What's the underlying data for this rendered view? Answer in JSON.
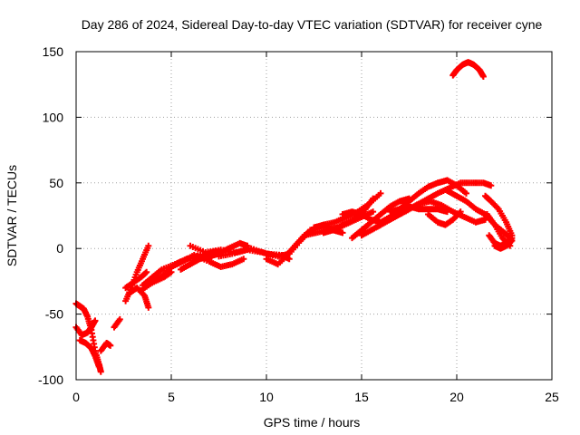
{
  "chart_data": {
    "type": "scatter",
    "title": "Day 286 of 2024, Sidereal Day-to-day VTEC variation (SDTVAR) for receiver cyne",
    "xlabel": "GPS time / hours",
    "ylabel": "SDTVAR / TECUs",
    "xlim": [
      0,
      25
    ],
    "ylim": [
      -100,
      150
    ],
    "xticks": [
      0,
      5,
      10,
      15,
      20,
      25
    ],
    "yticks": [
      -100,
      -50,
      0,
      50,
      100,
      150
    ],
    "xtick_labels": [
      "0",
      "5",
      "10",
      "15",
      "20",
      "25"
    ],
    "ytick_labels": [
      "-100",
      "-50",
      "0",
      "50",
      "100",
      "150"
    ],
    "grid": true,
    "marker": "+",
    "color": "#ff0000",
    "series": [
      {
        "name": "track-1",
        "x": [
          0.0,
          0.2,
          0.4,
          0.6,
          0.8,
          1.0,
          1.2,
          1.3
        ],
        "y": [
          -42,
          -44,
          -46,
          -52,
          -62,
          -78,
          -88,
          -94
        ]
      },
      {
        "name": "track-2",
        "x": [
          0.0,
          0.3,
          0.6,
          0.8,
          1.0
        ],
        "y": [
          -60,
          -66,
          -64,
          -60,
          -55
        ]
      },
      {
        "name": "track-3",
        "x": [
          0.2,
          0.5,
          0.8,
          1.0,
          1.2
        ],
        "y": [
          -70,
          -72,
          -76,
          -82,
          -90
        ]
      },
      {
        "name": "track-4",
        "x": [
          1.3,
          1.6,
          1.8
        ],
        "y": [
          -78,
          -72,
          -74
        ]
      },
      {
        "name": "track-5",
        "x": [
          2.0,
          2.3
        ],
        "y": [
          -60,
          -54
        ]
      },
      {
        "name": "track-6",
        "x": [
          2.6,
          2.9,
          3.2,
          3.5,
          3.8
        ],
        "y": [
          -40,
          -30,
          -18,
          -8,
          2
        ]
      },
      {
        "name": "track-7",
        "x": [
          2.6,
          3.0,
          3.4,
          3.7
        ],
        "y": [
          -30,
          -26,
          -22,
          -18
        ]
      },
      {
        "name": "track-8",
        "x": [
          2.8,
          3.2,
          3.6,
          3.8
        ],
        "y": [
          -34,
          -30,
          -36,
          -45
        ]
      },
      {
        "name": "track-9",
        "x": [
          3.4,
          4.0,
          4.6,
          5.0
        ],
        "y": [
          -32,
          -26,
          -22,
          -18
        ]
      },
      {
        "name": "track-10",
        "x": [
          3.5,
          4.0,
          4.5,
          5.2,
          6.0,
          6.8,
          7.5
        ],
        "y": [
          -28,
          -22,
          -16,
          -12,
          -7,
          -4,
          -2
        ]
      },
      {
        "name": "track-11",
        "x": [
          4.0,
          4.6,
          5.2,
          5.8,
          6.4,
          7.0
        ],
        "y": [
          -26,
          -20,
          -12,
          -8,
          -6,
          -8
        ]
      },
      {
        "name": "track-12",
        "x": [
          5.0,
          5.6,
          6.2,
          7.0,
          7.6,
          8.2,
          8.8
        ],
        "y": [
          -14,
          -10,
          -5,
          -10,
          -14,
          -12,
          -8
        ]
      },
      {
        "name": "track-13",
        "x": [
          5.5,
          6.0,
          6.5,
          7.0,
          7.5,
          8.0,
          8.6,
          9.0
        ],
        "y": [
          -16,
          -12,
          -8,
          -6,
          -4,
          0,
          4,
          2
        ]
      },
      {
        "name": "track-14",
        "x": [
          6.0,
          6.8,
          7.6,
          8.4,
          9.2,
          10.0,
          10.8,
          11.2
        ],
        "y": [
          2,
          -3,
          -1,
          -3,
          0,
          -4,
          -5,
          -8
        ]
      },
      {
        "name": "track-15",
        "x": [
          7.5,
          8.2,
          9.0,
          9.8,
          10.6,
          11.2
        ],
        "y": [
          -6,
          -4,
          -1,
          -3,
          -6,
          -4
        ]
      },
      {
        "name": "track-16",
        "x": [
          10.0,
          10.6,
          11.2,
          11.8,
          12.3
        ],
        "y": [
          -8,
          -12,
          -4,
          6,
          14
        ]
      },
      {
        "name": "track-17",
        "x": [
          11.0,
          11.5,
          12.0,
          12.5,
          13.0,
          13.5,
          14.0
        ],
        "y": [
          -6,
          2,
          10,
          15,
          18,
          14,
          12
        ]
      },
      {
        "name": "track-18",
        "x": [
          11.5,
          12.0,
          12.6,
          13.2,
          13.8,
          14.4,
          15.0,
          15.6
        ],
        "y": [
          2,
          10,
          12,
          14,
          16,
          20,
          24,
          28
        ]
      },
      {
        "name": "track-19",
        "x": [
          12.5,
          13.0,
          13.6,
          14.2,
          14.8,
          15.4,
          16.0
        ],
        "y": [
          16,
          18,
          20,
          24,
          28,
          34,
          42
        ]
      },
      {
        "name": "track-20",
        "x": [
          13.0,
          13.5,
          14.0,
          14.6,
          15.2,
          15.6
        ],
        "y": [
          12,
          14,
          18,
          22,
          30,
          38
        ]
      },
      {
        "name": "track-21",
        "x": [
          14.0,
          14.5,
          15.0,
          15.5,
          16.0,
          16.5,
          17.0
        ],
        "y": [
          26,
          28,
          26,
          22,
          20,
          24,
          26
        ]
      },
      {
        "name": "track-22",
        "x": [
          14.5,
          15.0,
          15.5,
          16.0,
          16.5,
          17.0,
          17.5
        ],
        "y": [
          8,
          14,
          20,
          26,
          32,
          36,
          38
        ]
      },
      {
        "name": "track-23",
        "x": [
          15.0,
          15.5,
          16.0,
          16.5,
          17.0,
          17.5,
          18.0,
          18.6,
          19.2,
          19.8,
          20.4,
          21.0,
          21.5
        ],
        "y": [
          10,
          14,
          18,
          22,
          26,
          30,
          34,
          36,
          33,
          28,
          24,
          20,
          22
        ]
      },
      {
        "name": "track-24",
        "x": [
          15.5,
          16.0,
          16.5,
          17.0,
          17.5,
          18.0,
          18.5,
          19.0,
          19.5,
          20.0,
          20.5
        ],
        "y": [
          14,
          18,
          24,
          30,
          36,
          42,
          47,
          50,
          52,
          48,
          42
        ]
      },
      {
        "name": "track-25",
        "x": [
          16.5,
          17.0,
          17.5,
          18.0,
          18.5,
          19.0,
          19.5
        ],
        "y": [
          28,
          30,
          32,
          30,
          30,
          30,
          28
        ]
      },
      {
        "name": "track-26",
        "x": [
          17.0,
          17.5,
          18.0,
          18.5,
          19.0,
          19.6,
          20.2,
          20.8,
          21.4,
          21.8
        ],
        "y": [
          26,
          30,
          34,
          38,
          42,
          46,
          50,
          50,
          50,
          48
        ]
      },
      {
        "name": "track-27",
        "x": [
          18.5,
          19.0,
          19.4,
          19.8,
          20.2
        ],
        "y": [
          26,
          20,
          18,
          22,
          28
        ]
      },
      {
        "name": "track-28",
        "x": [
          19.5,
          20.0,
          20.5,
          21.0,
          21.5,
          22.0,
          22.5,
          22.8
        ],
        "y": [
          44,
          40,
          36,
          30,
          26,
          18,
          12,
          8
        ]
      },
      {
        "name": "track-29",
        "x": [
          21.5,
          21.8,
          22.2,
          22.6,
          22.9
        ],
        "y": [
          40,
          36,
          30,
          20,
          10
        ]
      },
      {
        "name": "track-30",
        "x": [
          21.6,
          22.0,
          22.4,
          22.8
        ],
        "y": [
          26,
          18,
          8,
          2
        ]
      },
      {
        "name": "track-31",
        "x": [
          21.7,
          22.0,
          22.3,
          22.6,
          22.9
        ],
        "y": [
          10,
          4,
          2,
          4,
          8
        ]
      },
      {
        "name": "track-32",
        "x": [
          22.0,
          22.3,
          22.6,
          22.9
        ],
        "y": [
          2,
          0,
          2,
          6
        ]
      },
      {
        "name": "track-33",
        "x": [
          19.8,
          20.0,
          20.3,
          20.6,
          20.9,
          21.2,
          21.4
        ],
        "y": [
          132,
          136,
          140,
          142,
          140,
          136,
          131
        ]
      }
    ]
  }
}
